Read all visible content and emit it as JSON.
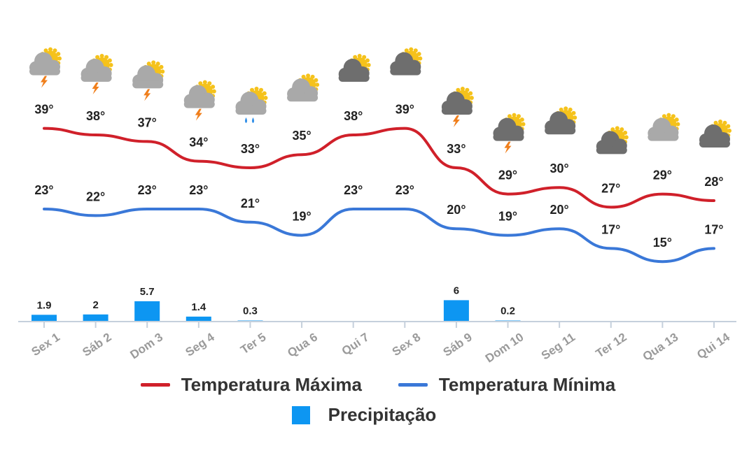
{
  "colors": {
    "max_line": "#d0202a",
    "min_line": "#3a78d8",
    "precip": "#0d96f2",
    "axis": "#c5d0dc",
    "cloud_light": "#a9a9a9",
    "cloud_dark": "#6e6e6e",
    "sun": "#f5c21b",
    "bolt": "#f07f1c",
    "rain": "#2f8ee8"
  },
  "legend": {
    "max_label": "Temperatura Máxima",
    "min_label": "Temperatura Mínima",
    "precip_label": "Precipitação"
  },
  "chart_data": {
    "type": "line",
    "categories": [
      "Sex 1",
      "Sáb 2",
      "Dom 3",
      "Seg 4",
      "Ter 5",
      "Qua 6",
      "Qui 7",
      "Sex 8",
      "Sáb 9",
      "Dom 10",
      "Seg 11",
      "Ter 12",
      "Qua 13",
      "Qui 14"
    ],
    "series": [
      {
        "name": "Temperatura Máxima",
        "type": "line",
        "values": [
          39,
          38,
          37,
          34,
          33,
          35,
          38,
          39,
          33,
          29,
          30,
          27,
          29,
          28
        ],
        "labels": [
          "39°",
          "38°",
          "37°",
          "34°",
          "33°",
          "35°",
          "38°",
          "39°",
          "33°",
          "29°",
          "30°",
          "27°",
          "29°",
          "28°"
        ]
      },
      {
        "name": "Temperatura Mínima",
        "type": "line",
        "values": [
          23,
          22,
          23,
          23,
          21,
          19,
          23,
          23,
          20,
          19,
          20,
          17,
          15,
          17
        ],
        "labels": [
          "23°",
          "22°",
          "23°",
          "23°",
          "21°",
          "19°",
          "23°",
          "23°",
          "20°",
          "19°",
          "20°",
          "17°",
          "15°",
          "17°"
        ]
      },
      {
        "name": "Precipitação",
        "type": "bar",
        "values": [
          1.9,
          2,
          5.7,
          1.4,
          0.3,
          0,
          0,
          0,
          6,
          0.2,
          0,
          0,
          0,
          0
        ],
        "labels": [
          "1.9",
          "2",
          "5.7",
          "1.4",
          "0.3",
          "",
          "",
          "",
          "6",
          "0.2",
          "",
          "",
          "",
          ""
        ]
      }
    ],
    "icons": [
      "storm-cloud-sun",
      "storm-cloud-sun",
      "storm-cloud-sun",
      "storm-cloud-sun",
      "rain-cloud-sun",
      "cloud-sun",
      "dark-cloud-sun",
      "dark-cloud-sun",
      "dark-storm-cloud-sun",
      "dark-storm-cloud-sun",
      "dark-cloud-sun",
      "dark-cloud-sun",
      "cloud-sun",
      "dark-cloud-sun"
    ],
    "xlabel": "",
    "ylabel": "",
    "grid": false,
    "legend_position": "bottom"
  }
}
